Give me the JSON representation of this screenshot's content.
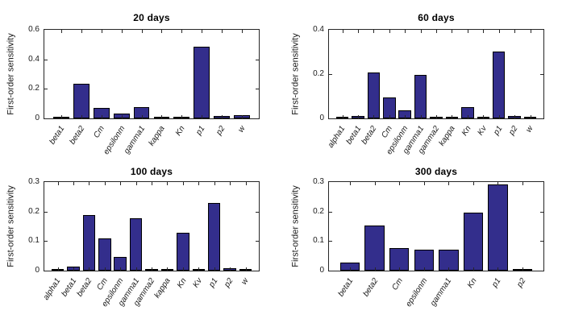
{
  "figure": {
    "background": "#ffffff",
    "bar_fill": "#332E8C",
    "bar_edge": "#000000",
    "axis_color": "#262626",
    "text_color": "#1a1a1a",
    "title_color": "#000000"
  },
  "chart_data": [
    {
      "type": "bar",
      "title": "20 days",
      "ylabel": "First-order sensitivity",
      "xlabel": "",
      "ylim": [
        0,
        0.6
      ],
      "yticks": [
        0,
        0.2,
        0.4,
        0.6
      ],
      "ytick_labels": [
        "0",
        "0.2",
        "0.4",
        "0.6"
      ],
      "grid": false,
      "legend": null,
      "categories": [
        "beta1",
        "beta2",
        "Cm",
        "epsilonm",
        "gamma1",
        "kappa",
        "Kn",
        "p1",
        "p2",
        "w"
      ],
      "values": [
        0.009,
        0.233,
        0.07,
        0.034,
        0.076,
        0.004,
        0.006,
        0.485,
        0.015,
        0.022
      ]
    },
    {
      "type": "bar",
      "title": "60 days",
      "ylabel": "First-order sensitivity",
      "xlabel": "",
      "ylim": [
        0,
        0.4
      ],
      "yticks": [
        0,
        0.2,
        0.4
      ],
      "ytick_labels": [
        "0",
        "0.2",
        "0.4"
      ],
      "grid": false,
      "legend": null,
      "categories": [
        "alpha1",
        "beta1",
        "beta2",
        "Cm",
        "epsilonm",
        "gamma1",
        "gamma2",
        "kappa",
        "Kn",
        "Kv",
        "p1",
        "p2",
        "w"
      ],
      "values": [
        0.002,
        0.011,
        0.206,
        0.096,
        0.038,
        0.198,
        0.002,
        0.007,
        0.051,
        0.004,
        0.302,
        0.011,
        0.002
      ]
    },
    {
      "type": "bar",
      "title": "100 days",
      "ylabel": "First-order sensitivity",
      "xlabel": "",
      "ylim": [
        0,
        0.3
      ],
      "yticks": [
        0,
        0.1,
        0.2,
        0.3
      ],
      "ytick_labels": [
        "0",
        "0.1",
        "0.2",
        "0.3"
      ],
      "grid": false,
      "legend": null,
      "categories": [
        "alpha1",
        "beta1",
        "beta2",
        "Cm",
        "epsilonm",
        "gamma1",
        "gamma2",
        "kappa",
        "Kn",
        "Kv",
        "p1",
        "p2",
        "w"
      ],
      "values": [
        0.003,
        0.014,
        0.187,
        0.108,
        0.045,
        0.178,
        0.003,
        0.006,
        0.128,
        0.005,
        0.228,
        0.007,
        0.003
      ]
    },
    {
      "type": "bar",
      "title": "300 days",
      "ylabel": "First-order sensitivity",
      "xlabel": "",
      "ylim": [
        0,
        0.3
      ],
      "yticks": [
        0,
        0.1,
        0.2,
        0.3
      ],
      "ytick_labels": [
        "0",
        "0.1",
        "0.2",
        "0.3"
      ],
      "grid": false,
      "legend": null,
      "categories": [
        "beta1",
        "beta2",
        "Cm",
        "epsilonm",
        "gamma1",
        "Kn",
        "p1",
        "p2"
      ],
      "values": [
        0.026,
        0.152,
        0.077,
        0.071,
        0.071,
        0.197,
        0.292,
        0.004
      ]
    }
  ]
}
